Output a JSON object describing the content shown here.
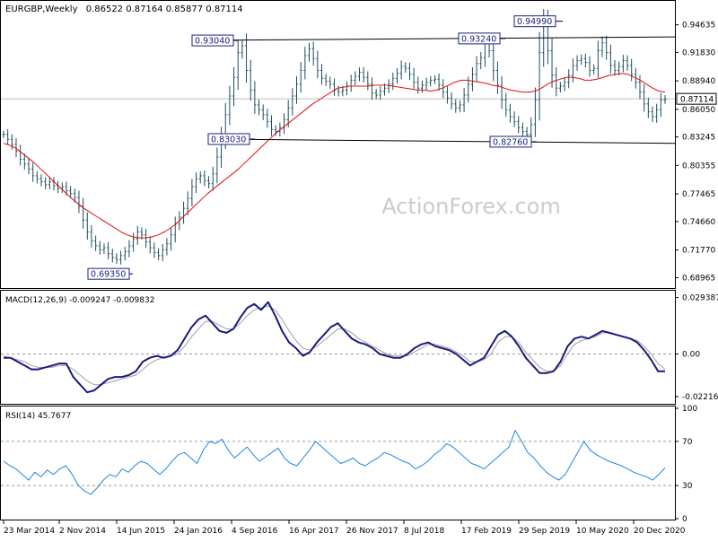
{
  "header": {
    "symbol": "EURGBP,Weekly",
    "ohlc": "0.86522 0.87164 0.85877 0.87114"
  },
  "watermark": "ActionForex.com",
  "chart_data": [
    {
      "type": "line",
      "panel": "price",
      "title": "EURGBP,Weekly 0.86522 0.87164 0.85877 0.87114",
      "ylim": [
        0.68,
        0.966
      ],
      "y_ticks": [
        "0.94635",
        "0.91830",
        "0.88940",
        "0.86050",
        "0.83245",
        "0.80355",
        "0.77465",
        "0.74660",
        "0.71770",
        "0.68965"
      ],
      "current_price_label": "0.87114",
      "current_price": 0.87114,
      "x_ticks": [
        "23 Mar 2014",
        "2 Nov 2014",
        "14 Jun 2015",
        "24 Jan 2016",
        "4 Sep 2016",
        "16 Apr 2017",
        "26 Nov 2017",
        "8 Jul 2018",
        "17 Feb 2019",
        "29 Sep 2019",
        "10 May 2020",
        "20 Dec 2020"
      ],
      "series": [
        {
          "values": [
            0.835,
            0.83,
            0.825,
            0.818,
            0.81,
            0.805,
            0.8,
            0.793,
            0.79,
            0.787,
            0.784,
            0.787,
            0.783,
            0.78,
            0.782,
            0.778,
            0.775,
            0.771,
            0.762,
            0.748,
            0.736,
            0.727,
            0.722,
            0.718,
            0.72,
            0.714,
            0.71,
            0.708,
            0.712,
            0.716,
            0.722,
            0.729,
            0.736,
            0.733,
            0.726,
            0.72,
            0.715,
            0.712,
            0.718,
            0.724,
            0.733,
            0.744,
            0.751,
            0.76,
            0.77,
            0.782,
            0.79,
            0.793,
            0.788,
            0.785,
            0.795,
            0.812,
            0.832,
            0.855,
            0.874,
            0.893,
            0.918,
            0.925,
            0.9,
            0.88,
            0.865,
            0.86,
            0.855,
            0.848,
            0.84,
            0.838,
            0.842,
            0.85,
            0.862,
            0.874,
            0.886,
            0.9,
            0.915,
            0.922,
            0.912,
            0.9,
            0.892,
            0.889,
            0.886,
            0.88,
            0.878,
            0.88,
            0.884,
            0.89,
            0.894,
            0.898,
            0.893,
            0.886,
            0.877,
            0.875,
            0.879,
            0.882,
            0.886,
            0.892,
            0.897,
            0.904,
            0.902,
            0.896,
            0.888,
            0.882,
            0.885,
            0.888,
            0.89,
            0.891,
            0.885,
            0.878,
            0.872,
            0.866,
            0.862,
            0.865,
            0.875,
            0.886,
            0.896,
            0.907,
            0.913,
            0.929,
            0.92,
            0.9,
            0.885,
            0.87,
            0.86,
            0.853,
            0.848,
            0.842,
            0.838,
            0.835,
            0.845,
            0.87,
            0.918,
            0.948,
            0.92,
            0.895,
            0.882,
            0.884,
            0.888,
            0.895,
            0.905,
            0.91,
            0.912,
            0.908,
            0.9,
            0.902,
            0.92,
            0.928,
            0.918,
            0.905,
            0.9,
            0.904,
            0.91,
            0.905,
            0.896,
            0.888,
            0.878,
            0.866,
            0.858,
            0.853,
            0.86,
            0.87,
            0.871
          ]
        },
        {
          "name": "moving average (red)",
          "values": [
            0.826,
            0.824,
            0.821,
            0.816,
            0.811,
            0.806,
            0.8,
            0.794,
            0.788,
            0.782,
            0.776,
            0.77,
            0.765,
            0.76,
            0.756,
            0.752,
            0.748,
            0.744,
            0.74,
            0.736,
            0.733,
            0.731,
            0.73,
            0.73,
            0.731,
            0.733,
            0.736,
            0.74,
            0.745,
            0.751,
            0.757,
            0.763,
            0.769,
            0.775,
            0.78,
            0.785,
            0.79,
            0.795,
            0.8,
            0.806,
            0.812,
            0.818,
            0.824,
            0.83,
            0.836,
            0.841,
            0.846,
            0.851,
            0.856,
            0.861,
            0.866,
            0.87,
            0.874,
            0.878,
            0.882,
            0.883,
            0.884,
            0.884,
            0.884,
            0.884,
            0.885,
            0.885,
            0.885,
            0.884,
            0.883,
            0.882,
            0.881,
            0.88,
            0.88,
            0.879,
            0.88,
            0.882,
            0.885,
            0.888,
            0.89,
            0.89,
            0.889,
            0.888,
            0.887,
            0.885,
            0.884,
            0.882,
            0.88,
            0.879,
            0.878,
            0.878,
            0.879,
            0.882,
            0.886,
            0.889,
            0.891,
            0.893,
            0.893,
            0.892,
            0.89,
            0.89,
            0.891,
            0.893,
            0.895,
            0.896,
            0.897,
            0.896,
            0.893,
            0.89,
            0.886,
            0.882,
            0.879,
            0.878
          ]
        }
      ],
      "annotations": [
        {
          "label": "0.93040",
          "value": 0.9304
        },
        {
          "label": "0.93240",
          "value": 0.9324
        },
        {
          "label": "0.94990",
          "value": 0.9499
        },
        {
          "label": "0.83030",
          "value": 0.8303
        },
        {
          "label": "0.82760",
          "value": 0.8276
        },
        {
          "label": "0.69350",
          "value": 0.6935
        }
      ],
      "channel": {
        "upper": [
          0.9304,
          0.934
        ],
        "lower": [
          0.8303,
          0.826
        ]
      },
      "grid": false
    },
    {
      "type": "line",
      "panel": "macd",
      "title": "MACD(12,26,9) -0.009247 -0.009832",
      "ylim": [
        -0.0255,
        0.032
      ],
      "y_ticks": [
        "0.029387",
        "0.00",
        "-0.022161"
      ],
      "series": [
        {
          "name": "MACD",
          "values": [
            -0.002,
            -0.002,
            -0.004,
            -0.006,
            -0.008,
            -0.008,
            -0.007,
            -0.006,
            -0.005,
            -0.005,
            -0.012,
            -0.016,
            -0.02,
            -0.019,
            -0.016,
            -0.013,
            -0.012,
            -0.012,
            -0.011,
            -0.009,
            -0.004,
            -0.002,
            -0.001,
            -0.002,
            -0.001,
            0.002,
            0.008,
            0.014,
            0.018,
            0.02,
            0.016,
            0.012,
            0.011,
            0.013,
            0.019,
            0.024,
            0.026,
            0.023,
            0.027,
            0.02,
            0.012,
            0.006,
            0.003,
            -0.001,
            0.001,
            0.006,
            0.01,
            0.014,
            0.016,
            0.012,
            0.008,
            0.006,
            0.005,
            0.003,
            0.0,
            -0.001,
            -0.002,
            -0.002,
            0.0,
            0.003,
            0.005,
            0.006,
            0.004,
            0.003,
            0.002,
            0.0,
            -0.003,
            -0.006,
            -0.004,
            -0.002,
            0.004,
            0.01,
            0.012,
            0.009,
            0.004,
            -0.002,
            -0.006,
            -0.01,
            -0.01,
            -0.009,
            -0.004,
            0.004,
            0.008,
            0.009,
            0.008,
            0.01,
            0.012,
            0.011,
            0.01,
            0.009,
            0.008,
            0.006,
            0.002,
            -0.003,
            -0.009,
            -0.009
          ]
        },
        {
          "name": "Signal",
          "values": [
            -0.001,
            -0.002,
            -0.003,
            -0.004,
            -0.006,
            -0.007,
            -0.007,
            -0.007,
            -0.006,
            -0.006,
            -0.008,
            -0.011,
            -0.014,
            -0.016,
            -0.016,
            -0.015,
            -0.014,
            -0.013,
            -0.012,
            -0.011,
            -0.008,
            -0.005,
            -0.003,
            -0.002,
            -0.001,
            0.0,
            0.004,
            0.009,
            0.013,
            0.017,
            0.017,
            0.015,
            0.013,
            0.013,
            0.016,
            0.02,
            0.023,
            0.024,
            0.025,
            0.023,
            0.018,
            0.012,
            0.007,
            0.003,
            0.002,
            0.004,
            0.007,
            0.01,
            0.013,
            0.013,
            0.011,
            0.008,
            0.006,
            0.004,
            0.002,
            0.0,
            -0.001,
            -0.001,
            -0.001,
            0.001,
            0.003,
            0.005,
            0.005,
            0.004,
            0.003,
            0.001,
            -0.001,
            -0.004,
            -0.004,
            -0.003,
            0.0,
            0.006,
            0.009,
            0.009,
            0.006,
            0.001,
            -0.003,
            -0.007,
            -0.009,
            -0.009,
            -0.006,
            0.0,
            0.005,
            0.007,
            0.008,
            0.009,
            0.011,
            0.011,
            0.01,
            0.009,
            0.008,
            0.007,
            0.004,
            0.0,
            -0.005,
            -0.008
          ]
        }
      ],
      "zero_line": 0.0,
      "grid": false
    },
    {
      "type": "line",
      "panel": "rsi",
      "title": "RSI(14) 45.7677",
      "ylim": [
        0,
        100
      ],
      "y_ticks": [
        "100",
        "70",
        "30",
        "0"
      ],
      "levels": [
        70,
        30
      ],
      "series": [
        {
          "name": "RSI(14)",
          "values": [
            52,
            48,
            45,
            40,
            35,
            42,
            38,
            44,
            40,
            45,
            48,
            40,
            30,
            25,
            22,
            28,
            35,
            40,
            38,
            45,
            42,
            48,
            52,
            50,
            45,
            40,
            45,
            52,
            58,
            60,
            55,
            50,
            62,
            70,
            68,
            72,
            62,
            55,
            60,
            65,
            58,
            52,
            56,
            60,
            64,
            55,
            50,
            48,
            55,
            62,
            70,
            65,
            60,
            55,
            50,
            52,
            55,
            50,
            48,
            52,
            55,
            60,
            58,
            55,
            52,
            50,
            45,
            48,
            52,
            58,
            62,
            68,
            65,
            60,
            55,
            50,
            48,
            45,
            50,
            55,
            60,
            65,
            80,
            70,
            60,
            55,
            48,
            42,
            38,
            35,
            40,
            50,
            60,
            70,
            62,
            58,
            55,
            52,
            50,
            48,
            45,
            42,
            40,
            38,
            35,
            40,
            46
          ]
        }
      ],
      "grid": false
    }
  ]
}
